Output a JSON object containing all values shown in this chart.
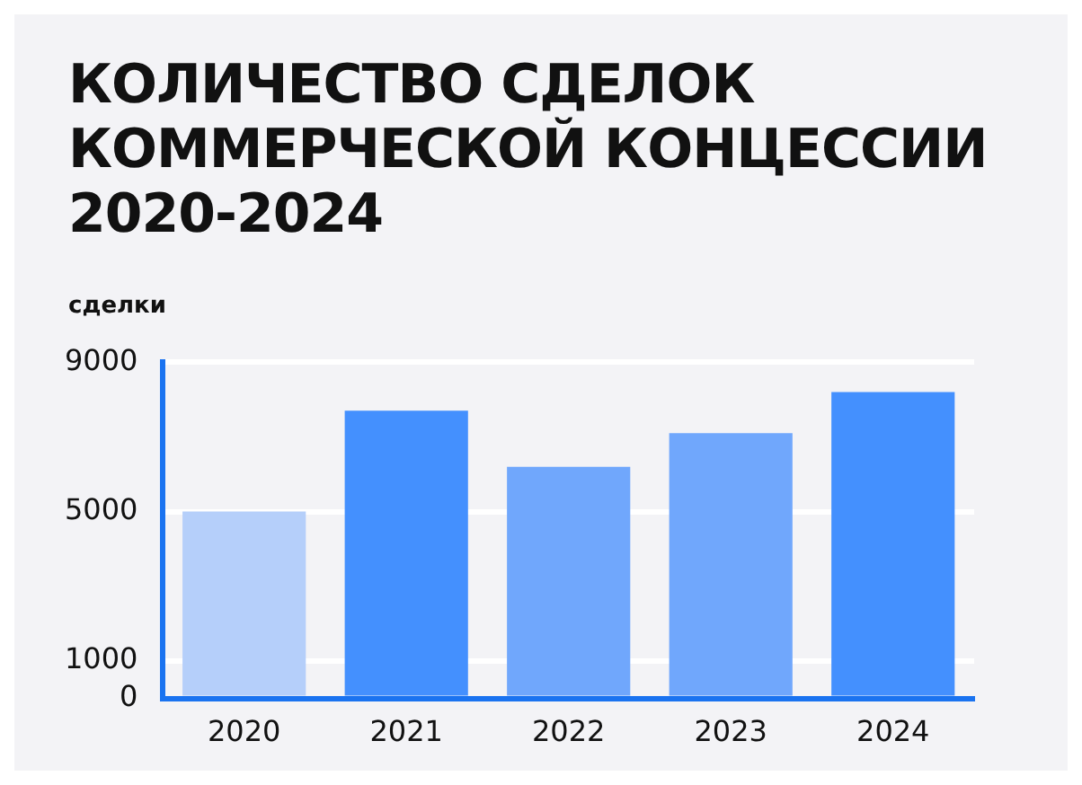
{
  "chart_data": {
    "type": "bar",
    "title": "КОЛИЧЕСТВО СДЕЛОК КОММЕРЧЕСКОЙ КОНЦЕССИИ 2020-2024",
    "ylabel": "сделки",
    "categories": [
      "2020",
      "2021",
      "2022",
      "2023",
      "2024"
    ],
    "values": [
      5000,
      7700,
      6200,
      7100,
      8200
    ],
    "colors": [
      "#b5cffa",
      "#4490fe",
      "#70a7fc",
      "#70a7fc",
      "#4490fe"
    ],
    "ylim": [
      0,
      9000
    ],
    "yticks": [
      0,
      1000,
      5000,
      9000
    ],
    "grid": "y",
    "legend": false
  }
}
